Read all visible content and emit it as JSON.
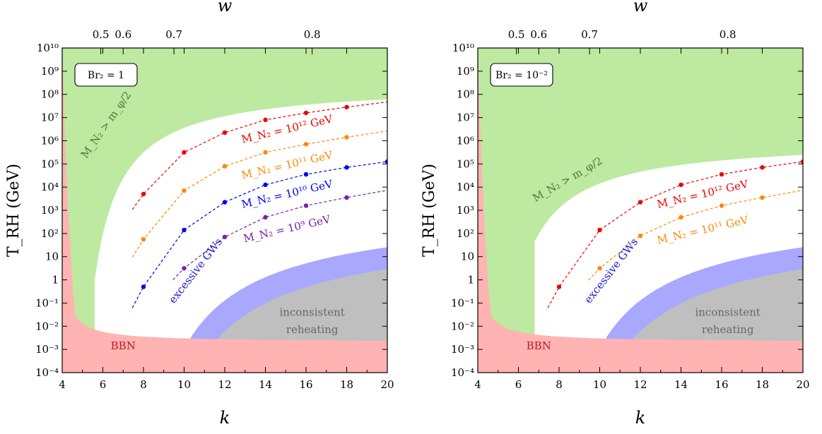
{
  "chart_data": [
    {
      "type": "line",
      "panel": "left",
      "xlabel": "k",
      "ylabel": "T_RH (GeV)",
      "top_axis_label": "w",
      "top_ticks": [
        "0.5",
        "0.6",
        "0.7",
        "0.8"
      ],
      "xlim": [
        4,
        20
      ],
      "ylim_log10": [
        -4,
        10
      ],
      "x_ticks": [
        "4",
        "6",
        "8",
        "10",
        "12",
        "14",
        "16",
        "18",
        "20"
      ],
      "y_ticks": [
        "10⁻⁴",
        "10⁻³",
        "10⁻²",
        "10⁻¹",
        "1",
        "10",
        "10²",
        "10³",
        "10⁴",
        "10⁵",
        "10⁶",
        "10⁷",
        "10⁸",
        "10⁹",
        "10¹⁰"
      ],
      "box_label": "Br₂ = 1",
      "bound_label": "M_N₂ > m_φ/2",
      "regions": {
        "bbn": {
          "label": "BBN",
          "color": "#ffb3b3"
        },
        "inconsistent": {
          "label_line1": "inconsistent",
          "label_line2": "reheating",
          "color": "#bfbfbf"
        },
        "gws": {
          "label": "excessive GWs",
          "color": "#a8a8ff"
        },
        "mass_bound": {
          "color": "#bde9a0"
        }
      },
      "series": [
        {
          "name": "M_N₂ = 10¹² GeV",
          "color": "#ee0000",
          "x": [
            8,
            10,
            12,
            14,
            16,
            18
          ],
          "log10_y": [
            3.7,
            5.5,
            6.35,
            6.9,
            7.2,
            7.45
          ]
        },
        {
          "name": "M_N₂ = 10¹¹ GeV",
          "color": "#ff8800",
          "x": [
            8,
            10,
            12,
            14,
            16,
            18
          ],
          "log10_y": [
            1.75,
            3.85,
            4.9,
            5.5,
            5.85,
            6.15
          ]
        },
        {
          "name": "M_N₂ = 10¹⁰ GeV",
          "color": "#0000ee",
          "x": [
            8,
            10,
            12,
            14,
            16,
            18,
            20
          ],
          "log10_y": [
            -0.3,
            2.15,
            3.35,
            4.1,
            4.55,
            4.85,
            5.1
          ]
        },
        {
          "name": "M_N₂ = 10⁹ GeV",
          "color": "#7a1fa2",
          "x": [
            10,
            12,
            14,
            16,
            18
          ],
          "log10_y": [
            0.5,
            1.85,
            2.7,
            3.2,
            3.55
          ]
        }
      ]
    },
    {
      "type": "line",
      "panel": "right",
      "xlabel": "k",
      "ylabel": "T_RH (GeV)",
      "top_axis_label": "w",
      "top_ticks": [
        "0.5",
        "0.6",
        "0.7",
        "0.8"
      ],
      "xlim": [
        4,
        20
      ],
      "ylim_log10": [
        -4,
        10
      ],
      "x_ticks": [
        "4",
        "6",
        "8",
        "10",
        "12",
        "14",
        "16",
        "18",
        "20"
      ],
      "y_ticks": [
        "10⁻⁴",
        "10⁻³",
        "10⁻²",
        "10⁻¹",
        "1",
        "10",
        "10²",
        "10³",
        "10⁴",
        "10⁵",
        "10⁶",
        "10⁷",
        "10⁸",
        "10⁹",
        "10¹⁰"
      ],
      "box_label": "Br₂ = 10⁻²",
      "bound_label": "M_N₂ > m_φ/2",
      "regions": {
        "bbn": {
          "label": "BBN",
          "color": "#ffb3b3"
        },
        "inconsistent": {
          "label_line1": "inconsistent",
          "label_line2": "reheating",
          "color": "#bfbfbf"
        },
        "gws": {
          "label": "excessive GWs",
          "color": "#a8a8ff"
        },
        "mass_bound": {
          "color": "#bde9a0"
        }
      },
      "series": [
        {
          "name": "M_N₂ = 10¹² GeV",
          "color": "#ee0000",
          "x": [
            8,
            10,
            12,
            14,
            16,
            18,
            20
          ],
          "log10_y": [
            -0.3,
            2.15,
            3.35,
            4.1,
            4.55,
            4.85,
            5.1
          ]
        },
        {
          "name": "M_N₂ = 10¹¹ GeV",
          "color": "#ff8800",
          "x": [
            10,
            12,
            14,
            16,
            18
          ],
          "log10_y": [
            0.5,
            1.9,
            2.7,
            3.2,
            3.55
          ]
        }
      ]
    }
  ]
}
